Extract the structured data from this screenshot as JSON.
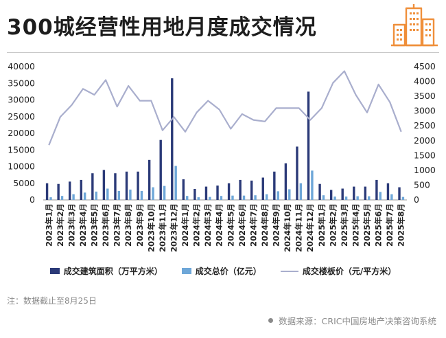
{
  "header": {
    "title": "300城经营性用地月度成交情况"
  },
  "footer": {
    "note": "注：数据截止至8月25日",
    "source": "数据来源：CRIC中国房地产决策咨询系统"
  },
  "colors": {
    "area": "#2b3a78",
    "amount": "#6ea7d8",
    "price": "#a9aecd",
    "accent": "#ef8f3a"
  },
  "chart_data": {
    "type": "bar",
    "categories": [
      "2023年1月",
      "2023年2月",
      "2023年3月",
      "2023年4月",
      "2023年5月",
      "2023年6月",
      "2023年7月",
      "2023年8月",
      "2023年9月",
      "2023年10月",
      "2023年11月",
      "2023年12月",
      "2024年1月",
      "2024年2月",
      "2024年3月",
      "2024年4月",
      "2024年5月",
      "2024年6月",
      "2024年7月",
      "2024年8月",
      "2024年9月",
      "2024年10月",
      "2024年11月",
      "2024年12月",
      "2025年1月",
      "2025年2月",
      "2025年3月",
      "2025年4月",
      "2025年5月",
      "2025年6月",
      "2025年7月",
      "2025年8月"
    ],
    "y_left_ticks": [
      "0",
      "5000",
      "10000",
      "15000",
      "20000",
      "25000",
      "30000",
      "35000",
      "40000"
    ],
    "y_right_ticks": [
      "0",
      "500",
      "1000",
      "1500",
      "2000",
      "2500",
      "3000",
      "3500",
      "4000",
      "4500"
    ],
    "ylim_left": [
      0,
      40000
    ],
    "ylim_right": [
      0,
      4500
    ],
    "series": [
      {
        "name": "成交建筑面积（万平方米）",
        "type": "bar",
        "axis": "left",
        "values": [
          5000,
          4800,
          5500,
          6000,
          8000,
          9000,
          8000,
          8500,
          8500,
          12000,
          18000,
          36500,
          6200,
          3300,
          4000,
          4300,
          5000,
          6000,
          5800,
          6700,
          8500,
          11000,
          16000,
          32500,
          4800,
          3000,
          3400,
          4000,
          4000,
          6000,
          5000,
          3800
        ]
      },
      {
        "name": "成交总价（亿元）",
        "type": "bar",
        "axis": "left",
        "values": [
          800,
          1200,
          1700,
          2200,
          2500,
          3400,
          2700,
          3100,
          2700,
          3800,
          4200,
          10200,
          1200,
          800,
          900,
          1200,
          1300,
          1300,
          1400,
          1700,
          2600,
          3200,
          5000,
          8800,
          1400,
          1000,
          1000,
          1100,
          1100,
          2400,
          1700,
          900
        ]
      },
      {
        "name": "成交楼板价（元/平方米）",
        "type": "line",
        "axis": "right",
        "values": [
          1850,
          2800,
          3200,
          3750,
          3550,
          4050,
          3150,
          3850,
          3350,
          3350,
          2350,
          2800,
          2300,
          2950,
          3350,
          3050,
          2400,
          2900,
          2700,
          2650,
          3100,
          3100,
          3100,
          2700,
          3100,
          3950,
          4350,
          3550,
          2950,
          3900,
          3300,
          2300
        ]
      }
    ]
  }
}
